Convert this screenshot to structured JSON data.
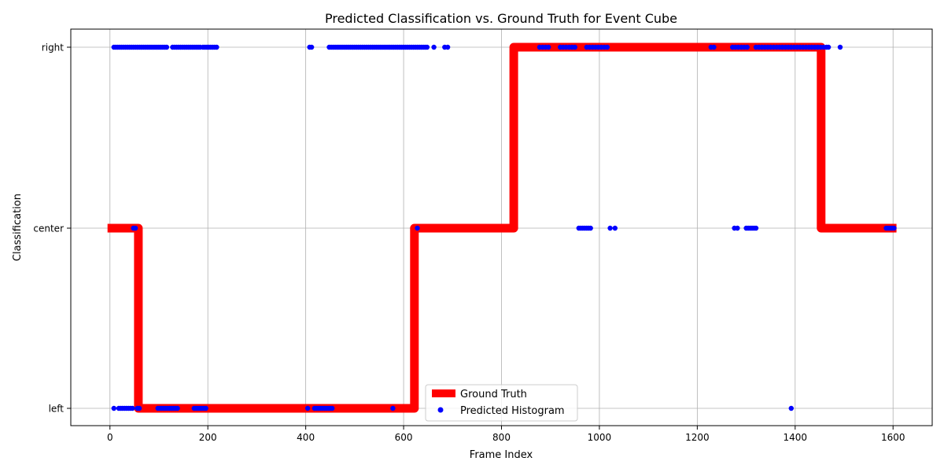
{
  "chart_data": {
    "type": "line",
    "title": "Predicted Classification vs. Ground Truth for Event Cube",
    "xlabel": "Frame Index",
    "ylabel": "Classification",
    "xlim": [
      -80,
      1680
    ],
    "x_ticks": [
      0,
      200,
      400,
      600,
      800,
      1000,
      1200,
      1400,
      1600
    ],
    "categories": [
      "left",
      "center",
      "right"
    ],
    "grid": true,
    "legend_position": "bottom-center",
    "series": [
      {
        "name": "Ground Truth",
        "kind": "step-line",
        "color": "#ff0000",
        "x": [
          -5,
          58,
          58,
          622,
          622,
          825,
          825,
          1453,
          1453,
          1607
        ],
        "y": [
          "center",
          "center",
          "left",
          "left",
          "center",
          "center",
          "right",
          "right",
          "center",
          "center"
        ]
      },
      {
        "name": "Predicted Histogram",
        "kind": "scatter",
        "color": "#0000ff",
        "points": [
          {
            "x": 8,
            "y": "right"
          },
          {
            "x": 12,
            "y": "right"
          },
          {
            "x": 16,
            "y": "right"
          },
          {
            "x": 20,
            "y": "right"
          },
          {
            "x": 24,
            "y": "right"
          },
          {
            "x": 28,
            "y": "right"
          },
          {
            "x": 32,
            "y": "right"
          },
          {
            "x": 36,
            "y": "right"
          },
          {
            "x": 40,
            "y": "right"
          },
          {
            "x": 44,
            "y": "right"
          },
          {
            "x": 48,
            "y": "right"
          },
          {
            "x": 52,
            "y": "right"
          },
          {
            "x": 56,
            "y": "right"
          },
          {
            "x": 60,
            "y": "right"
          },
          {
            "x": 64,
            "y": "right"
          },
          {
            "x": 68,
            "y": "right"
          },
          {
            "x": 72,
            "y": "right"
          },
          {
            "x": 76,
            "y": "right"
          },
          {
            "x": 80,
            "y": "right"
          },
          {
            "x": 84,
            "y": "right"
          },
          {
            "x": 88,
            "y": "right"
          },
          {
            "x": 92,
            "y": "right"
          },
          {
            "x": 96,
            "y": "right"
          },
          {
            "x": 100,
            "y": "right"
          },
          {
            "x": 104,
            "y": "right"
          },
          {
            "x": 108,
            "y": "right"
          },
          {
            "x": 112,
            "y": "right"
          },
          {
            "x": 116,
            "y": "right"
          },
          {
            "x": 128,
            "y": "right"
          },
          {
            "x": 132,
            "y": "right"
          },
          {
            "x": 136,
            "y": "right"
          },
          {
            "x": 140,
            "y": "right"
          },
          {
            "x": 144,
            "y": "right"
          },
          {
            "x": 148,
            "y": "right"
          },
          {
            "x": 152,
            "y": "right"
          },
          {
            "x": 156,
            "y": "right"
          },
          {
            "x": 160,
            "y": "right"
          },
          {
            "x": 164,
            "y": "right"
          },
          {
            "x": 168,
            "y": "right"
          },
          {
            "x": 172,
            "y": "right"
          },
          {
            "x": 176,
            "y": "right"
          },
          {
            "x": 180,
            "y": "right"
          },
          {
            "x": 184,
            "y": "right"
          },
          {
            "x": 190,
            "y": "right"
          },
          {
            "x": 194,
            "y": "right"
          },
          {
            "x": 198,
            "y": "right"
          },
          {
            "x": 202,
            "y": "right"
          },
          {
            "x": 206,
            "y": "right"
          },
          {
            "x": 210,
            "y": "right"
          },
          {
            "x": 214,
            "y": "right"
          },
          {
            "x": 218,
            "y": "right"
          },
          {
            "x": 408,
            "y": "right"
          },
          {
            "x": 412,
            "y": "right"
          },
          {
            "x": 448,
            "y": "right"
          },
          {
            "x": 452,
            "y": "right"
          },
          {
            "x": 456,
            "y": "right"
          },
          {
            "x": 460,
            "y": "right"
          },
          {
            "x": 464,
            "y": "right"
          },
          {
            "x": 468,
            "y": "right"
          },
          {
            "x": 472,
            "y": "right"
          },
          {
            "x": 476,
            "y": "right"
          },
          {
            "x": 480,
            "y": "right"
          },
          {
            "x": 484,
            "y": "right"
          },
          {
            "x": 488,
            "y": "right"
          },
          {
            "x": 492,
            "y": "right"
          },
          {
            "x": 496,
            "y": "right"
          },
          {
            "x": 500,
            "y": "right"
          },
          {
            "x": 504,
            "y": "right"
          },
          {
            "x": 508,
            "y": "right"
          },
          {
            "x": 512,
            "y": "right"
          },
          {
            "x": 516,
            "y": "right"
          },
          {
            "x": 520,
            "y": "right"
          },
          {
            "x": 524,
            "y": "right"
          },
          {
            "x": 528,
            "y": "right"
          },
          {
            "x": 532,
            "y": "right"
          },
          {
            "x": 536,
            "y": "right"
          },
          {
            "x": 540,
            "y": "right"
          },
          {
            "x": 544,
            "y": "right"
          },
          {
            "x": 548,
            "y": "right"
          },
          {
            "x": 552,
            "y": "right"
          },
          {
            "x": 556,
            "y": "right"
          },
          {
            "x": 560,
            "y": "right"
          },
          {
            "x": 564,
            "y": "right"
          },
          {
            "x": 568,
            "y": "right"
          },
          {
            "x": 572,
            "y": "right"
          },
          {
            "x": 576,
            "y": "right"
          },
          {
            "x": 580,
            "y": "right"
          },
          {
            "x": 584,
            "y": "right"
          },
          {
            "x": 588,
            "y": "right"
          },
          {
            "x": 592,
            "y": "right"
          },
          {
            "x": 596,
            "y": "right"
          },
          {
            "x": 600,
            "y": "right"
          },
          {
            "x": 604,
            "y": "right"
          },
          {
            "x": 608,
            "y": "right"
          },
          {
            "x": 612,
            "y": "right"
          },
          {
            "x": 616,
            "y": "right"
          },
          {
            "x": 620,
            "y": "right"
          },
          {
            "x": 624,
            "y": "right"
          },
          {
            "x": 628,
            "y": "right"
          },
          {
            "x": 632,
            "y": "right"
          },
          {
            "x": 636,
            "y": "right"
          },
          {
            "x": 640,
            "y": "right"
          },
          {
            "x": 644,
            "y": "right"
          },
          {
            "x": 648,
            "y": "right"
          },
          {
            "x": 662,
            "y": "right"
          },
          {
            "x": 684,
            "y": "right"
          },
          {
            "x": 690,
            "y": "right"
          },
          {
            "x": 878,
            "y": "right"
          },
          {
            "x": 884,
            "y": "right"
          },
          {
            "x": 890,
            "y": "right"
          },
          {
            "x": 896,
            "y": "right"
          },
          {
            "x": 920,
            "y": "right"
          },
          {
            "x": 926,
            "y": "right"
          },
          {
            "x": 932,
            "y": "right"
          },
          {
            "x": 938,
            "y": "right"
          },
          {
            "x": 944,
            "y": "right"
          },
          {
            "x": 950,
            "y": "right"
          },
          {
            "x": 974,
            "y": "right"
          },
          {
            "x": 980,
            "y": "right"
          },
          {
            "x": 986,
            "y": "right"
          },
          {
            "x": 992,
            "y": "right"
          },
          {
            "x": 998,
            "y": "right"
          },
          {
            "x": 1004,
            "y": "right"
          },
          {
            "x": 1010,
            "y": "right"
          },
          {
            "x": 1016,
            "y": "right"
          },
          {
            "x": 1228,
            "y": "right"
          },
          {
            "x": 1234,
            "y": "right"
          },
          {
            "x": 1272,
            "y": "right"
          },
          {
            "x": 1278,
            "y": "right"
          },
          {
            "x": 1284,
            "y": "right"
          },
          {
            "x": 1290,
            "y": "right"
          },
          {
            "x": 1296,
            "y": "right"
          },
          {
            "x": 1302,
            "y": "right"
          },
          {
            "x": 1320,
            "y": "right"
          },
          {
            "x": 1326,
            "y": "right"
          },
          {
            "x": 1332,
            "y": "right"
          },
          {
            "x": 1338,
            "y": "right"
          },
          {
            "x": 1344,
            "y": "right"
          },
          {
            "x": 1350,
            "y": "right"
          },
          {
            "x": 1356,
            "y": "right"
          },
          {
            "x": 1362,
            "y": "right"
          },
          {
            "x": 1368,
            "y": "right"
          },
          {
            "x": 1374,
            "y": "right"
          },
          {
            "x": 1380,
            "y": "right"
          },
          {
            "x": 1386,
            "y": "right"
          },
          {
            "x": 1392,
            "y": "right"
          },
          {
            "x": 1398,
            "y": "right"
          },
          {
            "x": 1404,
            "y": "right"
          },
          {
            "x": 1410,
            "y": "right"
          },
          {
            "x": 1416,
            "y": "right"
          },
          {
            "x": 1422,
            "y": "right"
          },
          {
            "x": 1428,
            "y": "right"
          },
          {
            "x": 1434,
            "y": "right"
          },
          {
            "x": 1440,
            "y": "right"
          },
          {
            "x": 1446,
            "y": "right"
          },
          {
            "x": 1452,
            "y": "right"
          },
          {
            "x": 1458,
            "y": "right"
          },
          {
            "x": 1464,
            "y": "right"
          },
          {
            "x": 1468,
            "y": "right"
          },
          {
            "x": 1492,
            "y": "right"
          },
          {
            "x": 48,
            "y": "center"
          },
          {
            "x": 52,
            "y": "center"
          },
          {
            "x": 628,
            "y": "center"
          },
          {
            "x": 958,
            "y": "center"
          },
          {
            "x": 962,
            "y": "center"
          },
          {
            "x": 966,
            "y": "center"
          },
          {
            "x": 970,
            "y": "center"
          },
          {
            "x": 974,
            "y": "center"
          },
          {
            "x": 978,
            "y": "center"
          },
          {
            "x": 982,
            "y": "center"
          },
          {
            "x": 1022,
            "y": "center"
          },
          {
            "x": 1032,
            "y": "center"
          },
          {
            "x": 1276,
            "y": "center"
          },
          {
            "x": 1282,
            "y": "center"
          },
          {
            "x": 1300,
            "y": "center"
          },
          {
            "x": 1304,
            "y": "center"
          },
          {
            "x": 1308,
            "y": "center"
          },
          {
            "x": 1312,
            "y": "center"
          },
          {
            "x": 1316,
            "y": "center"
          },
          {
            "x": 1320,
            "y": "center"
          },
          {
            "x": 1586,
            "y": "center"
          },
          {
            "x": 1590,
            "y": "center"
          },
          {
            "x": 1594,
            "y": "center"
          },
          {
            "x": 1598,
            "y": "center"
          },
          {
            "x": 1602,
            "y": "center"
          },
          {
            "x": 8,
            "y": "left"
          },
          {
            "x": 18,
            "y": "left"
          },
          {
            "x": 22,
            "y": "left"
          },
          {
            "x": 26,
            "y": "left"
          },
          {
            "x": 30,
            "y": "left"
          },
          {
            "x": 34,
            "y": "left"
          },
          {
            "x": 38,
            "y": "left"
          },
          {
            "x": 42,
            "y": "left"
          },
          {
            "x": 46,
            "y": "left"
          },
          {
            "x": 56,
            "y": "left"
          },
          {
            "x": 60,
            "y": "left"
          },
          {
            "x": 98,
            "y": "left"
          },
          {
            "x": 102,
            "y": "left"
          },
          {
            "x": 106,
            "y": "left"
          },
          {
            "x": 110,
            "y": "left"
          },
          {
            "x": 114,
            "y": "left"
          },
          {
            "x": 118,
            "y": "left"
          },
          {
            "x": 122,
            "y": "left"
          },
          {
            "x": 126,
            "y": "left"
          },
          {
            "x": 130,
            "y": "left"
          },
          {
            "x": 134,
            "y": "left"
          },
          {
            "x": 138,
            "y": "left"
          },
          {
            "x": 172,
            "y": "left"
          },
          {
            "x": 176,
            "y": "left"
          },
          {
            "x": 180,
            "y": "left"
          },
          {
            "x": 184,
            "y": "left"
          },
          {
            "x": 188,
            "y": "left"
          },
          {
            "x": 192,
            "y": "left"
          },
          {
            "x": 196,
            "y": "left"
          },
          {
            "x": 404,
            "y": "left"
          },
          {
            "x": 418,
            "y": "left"
          },
          {
            "x": 422,
            "y": "left"
          },
          {
            "x": 426,
            "y": "left"
          },
          {
            "x": 430,
            "y": "left"
          },
          {
            "x": 434,
            "y": "left"
          },
          {
            "x": 438,
            "y": "left"
          },
          {
            "x": 442,
            "y": "left"
          },
          {
            "x": 446,
            "y": "left"
          },
          {
            "x": 450,
            "y": "left"
          },
          {
            "x": 454,
            "y": "left"
          },
          {
            "x": 578,
            "y": "left"
          },
          {
            "x": 1392,
            "y": "left"
          }
        ]
      }
    ]
  }
}
